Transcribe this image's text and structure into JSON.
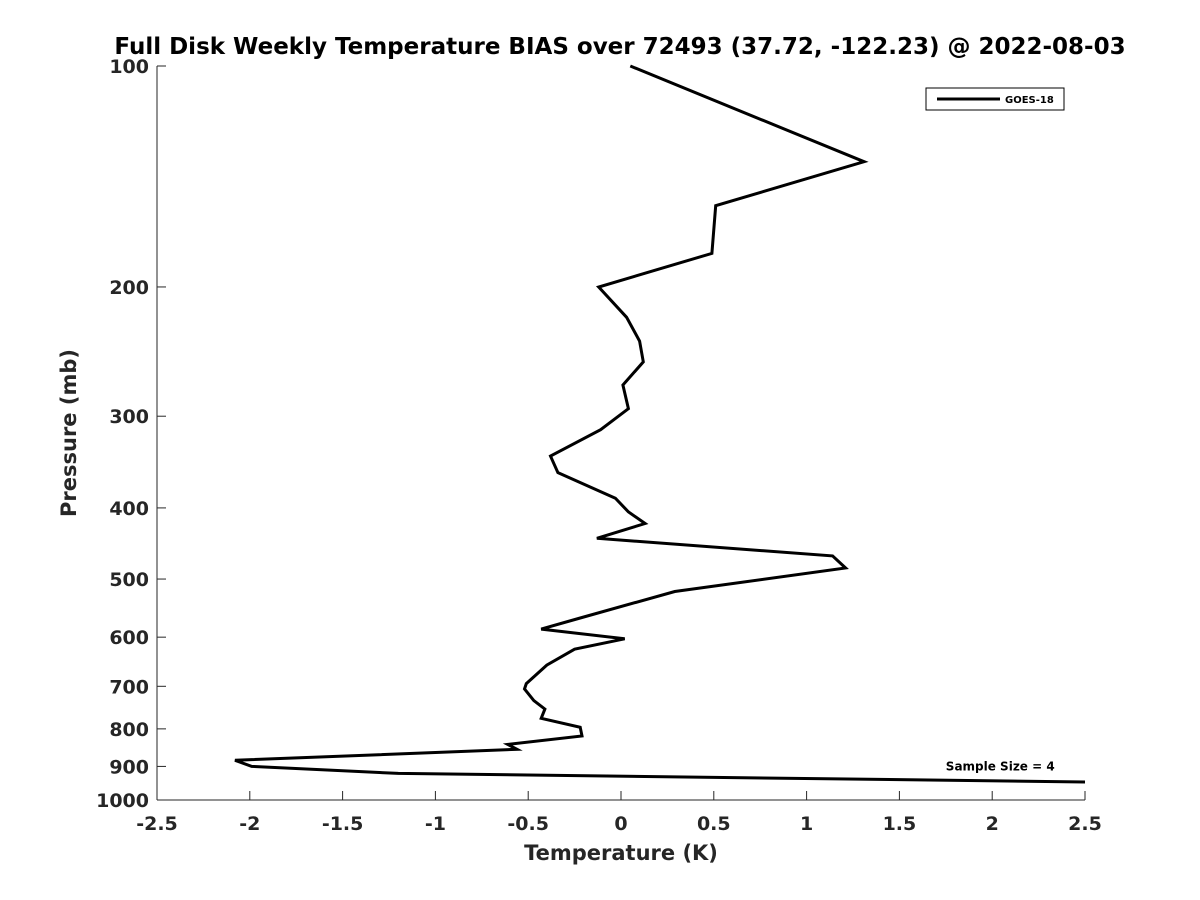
{
  "chart_data": {
    "type": "line",
    "title": "Full Disk Weekly Temperature BIAS over 72493 (37.72, -122.23) @ 2022-08-03",
    "xlabel": "Temperature (K)",
    "ylabel": "Pressure (mb)",
    "xlim": [
      -2.5,
      2.5
    ],
    "ylim": [
      100,
      1000
    ],
    "y_scale": "log",
    "y_reversed": true,
    "grid": false,
    "legend_position": "top-right",
    "x_ticks": [
      -2.5,
      -2,
      -1.5,
      -1,
      -0.5,
      0,
      0.5,
      1,
      1.5,
      2,
      2.5
    ],
    "x_tick_labels": [
      "-2.5",
      "-2",
      "-1.5",
      "-1",
      "-0.5",
      "0",
      "0.5",
      "1",
      "1.5",
      "2",
      "2.5"
    ],
    "y_ticks": [
      100,
      200,
      300,
      400,
      500,
      600,
      700,
      800,
      900,
      1000
    ],
    "y_tick_labels": [
      "100",
      "200",
      "300",
      "400",
      "500",
      "600",
      "700",
      "800",
      "900",
      "1000"
    ],
    "series": [
      {
        "name": "GOES-18",
        "color": "#000000",
        "points": [
          {
            "x": 0.05,
            "y": 100
          },
          {
            "x": 1.31,
            "y": 135
          },
          {
            "x": 0.51,
            "y": 155
          },
          {
            "x": 0.49,
            "y": 180
          },
          {
            "x": -0.12,
            "y": 200
          },
          {
            "x": 0.03,
            "y": 220
          },
          {
            "x": 0.1,
            "y": 237
          },
          {
            "x": 0.12,
            "y": 253
          },
          {
            "x": 0.01,
            "y": 272
          },
          {
            "x": 0.04,
            "y": 293
          },
          {
            "x": -0.11,
            "y": 313
          },
          {
            "x": -0.38,
            "y": 340
          },
          {
            "x": -0.34,
            "y": 358
          },
          {
            "x": -0.03,
            "y": 388
          },
          {
            "x": 0.04,
            "y": 405
          },
          {
            "x": 0.13,
            "y": 420
          },
          {
            "x": -0.13,
            "y": 440
          },
          {
            "x": 1.14,
            "y": 465
          },
          {
            "x": 1.21,
            "y": 483
          },
          {
            "x": 0.29,
            "y": 520
          },
          {
            "x": -0.22,
            "y": 565
          },
          {
            "x": -0.43,
            "y": 585
          },
          {
            "x": 0.02,
            "y": 603
          },
          {
            "x": -0.25,
            "y": 623
          },
          {
            "x": -0.4,
            "y": 655
          },
          {
            "x": -0.51,
            "y": 694
          },
          {
            "x": -0.52,
            "y": 706
          },
          {
            "x": -0.47,
            "y": 732
          },
          {
            "x": -0.41,
            "y": 752
          },
          {
            "x": -0.43,
            "y": 774
          },
          {
            "x": -0.22,
            "y": 796
          },
          {
            "x": -0.21,
            "y": 818
          },
          {
            "x": -0.61,
            "y": 840
          },
          {
            "x": -0.56,
            "y": 853
          },
          {
            "x": -2.08,
            "y": 883
          },
          {
            "x": -1.99,
            "y": 900
          },
          {
            "x": -1.2,
            "y": 920
          },
          {
            "x": 2.5,
            "y": 945
          }
        ]
      }
    ],
    "annotations": [
      {
        "text": "Sample Size = 4",
        "x": 1.75,
        "y": 900
      }
    ]
  }
}
